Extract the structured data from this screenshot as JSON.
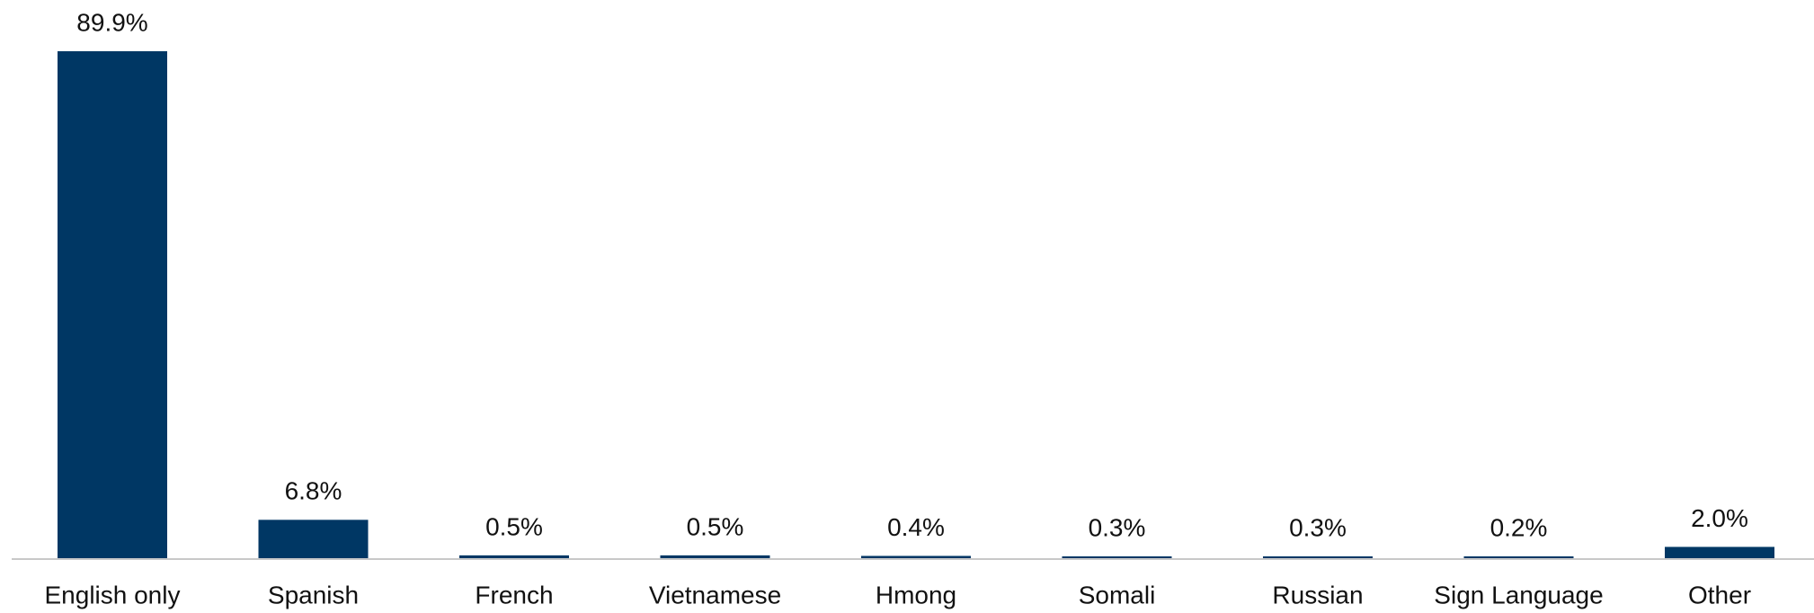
{
  "chart_data": {
    "type": "bar",
    "categories": [
      "English only",
      "Spanish",
      "French",
      "Vietnamese",
      "Hmong",
      "Somali",
      "Russian",
      "Sign Language",
      "Other"
    ],
    "values": [
      89.9,
      6.8,
      0.5,
      0.5,
      0.4,
      0.3,
      0.3,
      0.2,
      2.0
    ],
    "value_labels": [
      "89.9%",
      "6.8%",
      "0.5%",
      "0.5%",
      "0.4%",
      "0.3%",
      "0.3%",
      "0.2%",
      "2.0%"
    ],
    "color": "#003764"
  }
}
